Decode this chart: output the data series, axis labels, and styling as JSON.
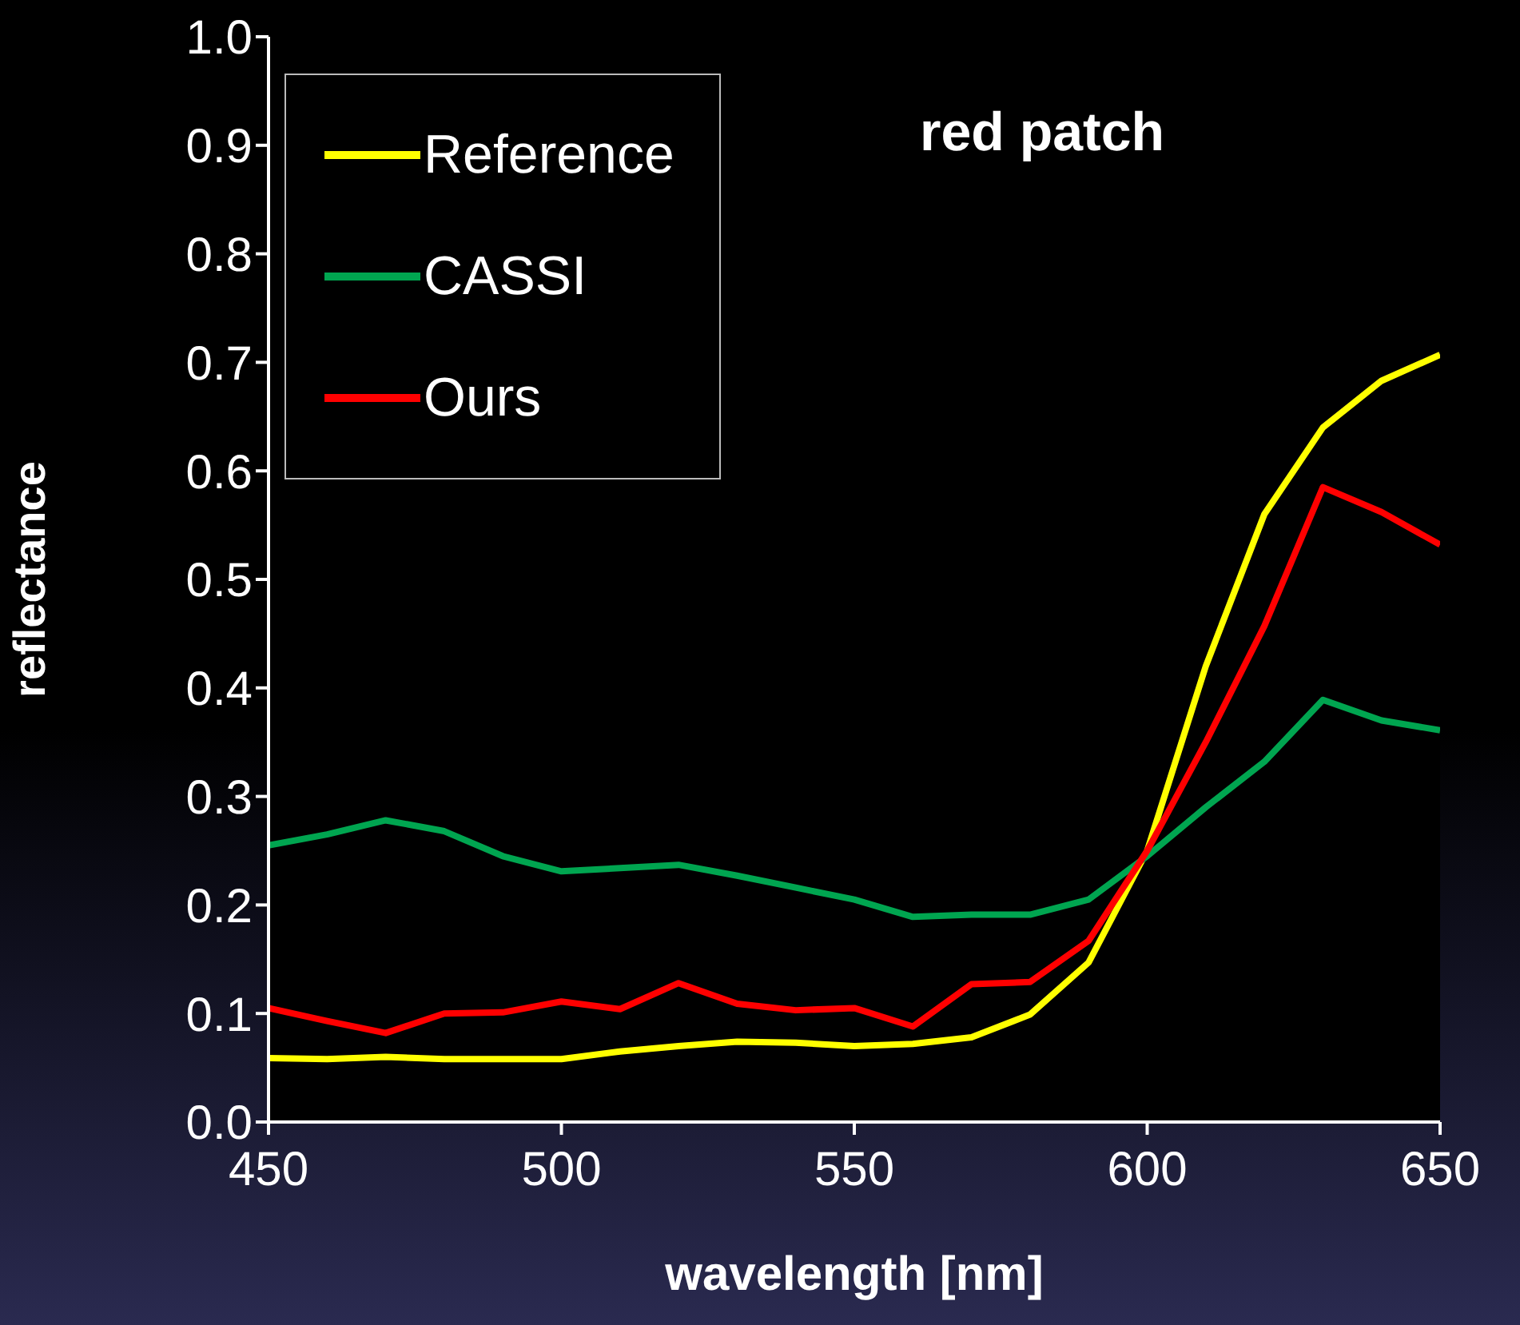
{
  "chart_data": {
    "type": "line",
    "title": "red patch",
    "xlabel": "wavelength [nm]",
    "ylabel": "reflectance",
    "x": [
      450,
      460,
      470,
      480,
      490,
      500,
      510,
      520,
      530,
      540,
      550,
      560,
      570,
      580,
      590,
      600,
      610,
      620,
      630,
      640,
      650
    ],
    "series": [
      {
        "name": "Reference",
        "color": "#ffff00",
        "values": [
          0.059,
          0.058,
          0.06,
          0.058,
          0.058,
          0.058,
          0.065,
          0.07,
          0.074,
          0.073,
          0.07,
          0.072,
          0.078,
          0.099,
          0.147,
          0.25,
          0.42,
          0.56,
          0.64,
          0.683,
          0.707
        ]
      },
      {
        "name": "CASSI",
        "color": "#00a550",
        "values": [
          0.255,
          0.265,
          0.278,
          0.268,
          0.245,
          0.231,
          0.234,
          0.237,
          0.227,
          0.216,
          0.205,
          0.189,
          0.191,
          0.191,
          0.205,
          0.245,
          0.29,
          0.332,
          0.389,
          0.37,
          0.361
        ]
      },
      {
        "name": "Ours",
        "color": "#ff0000",
        "values": [
          0.105,
          0.093,
          0.082,
          0.1,
          0.101,
          0.111,
          0.104,
          0.128,
          0.109,
          0.103,
          0.105,
          0.088,
          0.127,
          0.129,
          0.167,
          0.25,
          0.35,
          0.457,
          0.585,
          0.562,
          0.532
        ]
      }
    ],
    "xlim": [
      450,
      650
    ],
    "xticks": [
      450,
      500,
      550,
      600,
      650
    ],
    "ylim": [
      0,
      1
    ],
    "yticks": [
      {
        "value": 0,
        "label": "0.0"
      },
      {
        "value": 0.1,
        "label": "0.1"
      },
      {
        "value": 0.2,
        "label": "0.2"
      },
      {
        "value": 0.3,
        "label": "0.3"
      },
      {
        "value": 0.4,
        "label": "0.4"
      },
      {
        "value": 0.5,
        "label": "0.5"
      },
      {
        "value": 0.6,
        "label": "0.6"
      },
      {
        "value": 0.7,
        "label": "0.7"
      },
      {
        "value": 0.8,
        "label": "0.8"
      },
      {
        "value": 0.9,
        "label": "0.9"
      },
      {
        "value": 1,
        "label": "1.0"
      }
    ],
    "grid": false,
    "legend": "top left",
    "marker": "none",
    "line_style": "solid"
  }
}
